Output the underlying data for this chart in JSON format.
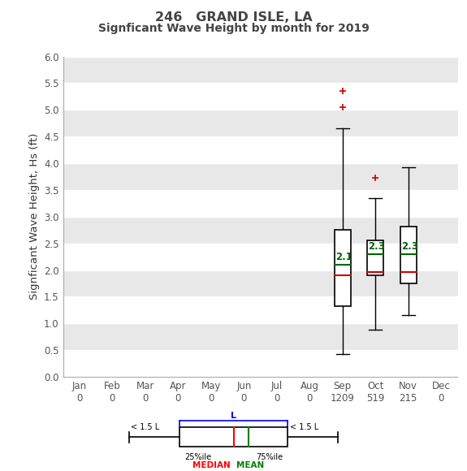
{
  "title_line1": "246   GRAND ISLE, LA",
  "title_line2": "Signficant Wave Height by month for 2019",
  "ylabel": "Signficant Wave Height, Hs (ft)",
  "months": [
    "Jan",
    "Feb",
    "Mar",
    "Apr",
    "May",
    "Jun",
    "Jul",
    "Aug",
    "Sep",
    "Oct",
    "Nov",
    "Dec"
  ],
  "counts": [
    0,
    0,
    0,
    0,
    0,
    0,
    0,
    0,
    1209,
    519,
    215,
    0
  ],
  "ylim": [
    0.0,
    6.0
  ],
  "yticks": [
    0.0,
    0.5,
    1.0,
    1.5,
    2.0,
    2.5,
    3.0,
    3.5,
    4.0,
    4.5,
    5.0,
    5.5,
    6.0
  ],
  "boxes": [
    {
      "month_idx": 8,
      "q1": 1.32,
      "median": 1.9,
      "mean": 2.1,
      "q3": 2.75,
      "whisker_low": 0.42,
      "whisker_high": 4.65,
      "outliers": [
        5.05,
        5.35
      ]
    },
    {
      "month_idx": 9,
      "q1": 1.9,
      "median": 1.97,
      "mean": 2.3,
      "q3": 2.55,
      "whisker_low": 0.88,
      "whisker_high": 3.35,
      "outliers": [
        3.72
      ]
    },
    {
      "month_idx": 10,
      "q1": 1.75,
      "median": 1.97,
      "mean": 2.3,
      "q3": 2.82,
      "whisker_low": 1.15,
      "whisker_high": 3.92,
      "outliers": []
    }
  ],
  "title_color": "#444444",
  "bg_color": "#e8e8e8",
  "stripe_color": "#d0d0d0",
  "box_facecolor": "white",
  "box_edgecolor": "#000000",
  "median_color": "#cc0000",
  "mean_color": "#006400",
  "outlier_color": "#cc0000",
  "whisker_color": "#000000",
  "box_width": 0.5,
  "tick_color": "#555555",
  "ylabel_color": "#333333"
}
